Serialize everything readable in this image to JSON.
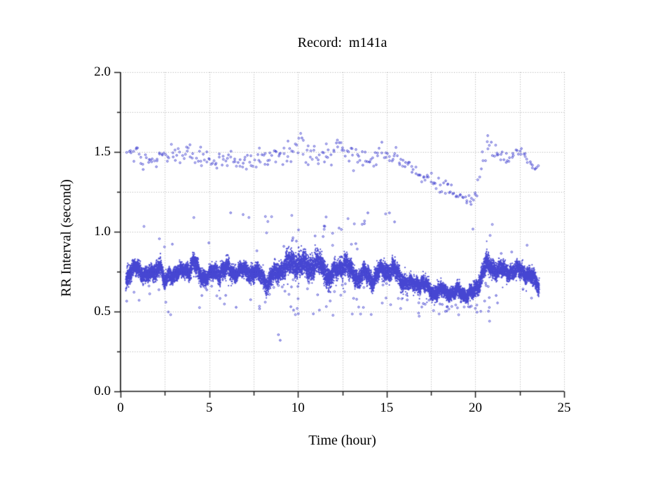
{
  "chart_data": {
    "type": "scatter",
    "title": "Record:  m141a",
    "xlabel": "Time (hour)",
    "ylabel": "RR Interval (second)",
    "xlim": [
      0,
      25
    ],
    "ylim": [
      0.0,
      2.0
    ],
    "x_ticks": [
      {
        "v": 0,
        "label": "0"
      },
      {
        "v": 5,
        "label": "5"
      },
      {
        "v": 10,
        "label": "10"
      },
      {
        "v": 15,
        "label": "15"
      },
      {
        "v": 20,
        "label": "20"
      },
      {
        "v": 25,
        "label": "25"
      }
    ],
    "x_minor_step": 2.5,
    "y_ticks": [
      {
        "v": 0.0,
        "label": "0.0"
      },
      {
        "v": 0.5,
        "label": "0.5"
      },
      {
        "v": 1.0,
        "label": "1.0"
      },
      {
        "v": 1.5,
        "label": "1.5"
      },
      {
        "v": 2.0,
        "label": "2.0"
      }
    ],
    "y_minor_step": 0.25,
    "grid": {
      "style": "dotted",
      "at_minor_ticks": true
    },
    "legend": "none",
    "point_style": "small-open-circle",
    "point_color": "#3232cd",
    "axis_color": "#1a1a1a",
    "grid_color": "#ababab",
    "background_color": "#ffffff",
    "time_range": [
      0.3,
      23.6
    ],
    "seed": 1337,
    "band": {
      "description": "dense main RR-interval band (seconds vs hour): [t, center, half_width]",
      "points_per_hour": 700,
      "profile": [
        [
          0.3,
          0.71,
          0.07
        ],
        [
          0.55,
          0.76,
          0.06
        ],
        [
          0.9,
          0.77,
          0.05
        ],
        [
          1.3,
          0.74,
          0.05
        ],
        [
          1.7,
          0.73,
          0.05
        ],
        [
          2.05,
          0.76,
          0.06
        ],
        [
          2.25,
          0.82,
          0.06
        ],
        [
          2.45,
          0.67,
          0.06
        ],
        [
          2.7,
          0.72,
          0.05
        ],
        [
          3.1,
          0.74,
          0.05
        ],
        [
          3.5,
          0.75,
          0.05
        ],
        [
          3.9,
          0.77,
          0.06
        ],
        [
          4.15,
          0.81,
          0.07
        ],
        [
          4.45,
          0.73,
          0.06
        ],
        [
          4.8,
          0.72,
          0.05
        ],
        [
          5.2,
          0.74,
          0.05
        ],
        [
          5.6,
          0.75,
          0.06
        ],
        [
          6.0,
          0.77,
          0.06
        ],
        [
          6.4,
          0.74,
          0.05
        ],
        [
          6.8,
          0.76,
          0.05
        ],
        [
          7.2,
          0.75,
          0.05
        ],
        [
          7.6,
          0.74,
          0.06
        ],
        [
          8.0,
          0.72,
          0.06
        ],
        [
          8.3,
          0.67,
          0.06
        ],
        [
          8.6,
          0.73,
          0.06
        ],
        [
          9.0,
          0.76,
          0.07
        ],
        [
          9.4,
          0.79,
          0.08
        ],
        [
          9.8,
          0.81,
          0.08
        ],
        [
          10.2,
          0.79,
          0.08
        ],
        [
          10.6,
          0.78,
          0.08
        ],
        [
          11.0,
          0.8,
          0.08
        ],
        [
          11.4,
          0.78,
          0.07
        ],
        [
          11.8,
          0.71,
          0.07
        ],
        [
          12.2,
          0.77,
          0.07
        ],
        [
          12.6,
          0.8,
          0.07
        ],
        [
          13.0,
          0.75,
          0.06
        ],
        [
          13.4,
          0.71,
          0.06
        ],
        [
          13.8,
          0.74,
          0.06
        ],
        [
          14.2,
          0.7,
          0.06
        ],
        [
          14.6,
          0.75,
          0.06
        ],
        [
          15.0,
          0.76,
          0.06
        ],
        [
          15.4,
          0.76,
          0.06
        ],
        [
          15.8,
          0.71,
          0.06
        ],
        [
          16.2,
          0.67,
          0.05
        ],
        [
          16.7,
          0.68,
          0.05
        ],
        [
          17.2,
          0.66,
          0.05
        ],
        [
          17.7,
          0.62,
          0.05
        ],
        [
          18.2,
          0.63,
          0.05
        ],
        [
          18.7,
          0.61,
          0.04
        ],
        [
          19.1,
          0.63,
          0.05
        ],
        [
          19.5,
          0.6,
          0.04
        ],
        [
          19.9,
          0.62,
          0.05
        ],
        [
          20.2,
          0.68,
          0.06
        ],
        [
          20.5,
          0.78,
          0.07
        ],
        [
          20.9,
          0.78,
          0.06
        ],
        [
          21.3,
          0.76,
          0.06
        ],
        [
          21.7,
          0.75,
          0.05
        ],
        [
          22.1,
          0.75,
          0.05
        ],
        [
          22.5,
          0.76,
          0.06
        ],
        [
          22.9,
          0.74,
          0.05
        ],
        [
          23.2,
          0.71,
          0.05
        ],
        [
          23.45,
          0.68,
          0.05
        ],
        [
          23.6,
          0.66,
          0.05
        ]
      ]
    },
    "upper_cluster": {
      "description": "sparse cluster near 2x RR (missed beats): [t, center, sd]",
      "points_per_hour": 14,
      "profile": [
        [
          0.4,
          1.5,
          0.05
        ],
        [
          1.0,
          1.48,
          0.06
        ],
        [
          1.6,
          1.44,
          0.05
        ],
        [
          2.2,
          1.46,
          0.05
        ],
        [
          2.8,
          1.48,
          0.05
        ],
        [
          3.4,
          1.47,
          0.05
        ],
        [
          4.0,
          1.49,
          0.06
        ],
        [
          4.6,
          1.46,
          0.05
        ],
        [
          5.2,
          1.44,
          0.05
        ],
        [
          5.8,
          1.46,
          0.05
        ],
        [
          6.4,
          1.44,
          0.05
        ],
        [
          7.0,
          1.43,
          0.05
        ],
        [
          7.6,
          1.45,
          0.06
        ],
        [
          8.2,
          1.46,
          0.06
        ],
        [
          8.8,
          1.49,
          0.07
        ],
        [
          9.4,
          1.52,
          0.08
        ],
        [
          10.0,
          1.54,
          0.08
        ],
        [
          10.6,
          1.5,
          0.08
        ],
        [
          11.2,
          1.47,
          0.07
        ],
        [
          11.8,
          1.49,
          0.06
        ],
        [
          12.4,
          1.53,
          0.06
        ],
        [
          13.0,
          1.49,
          0.07
        ],
        [
          13.6,
          1.44,
          0.07
        ],
        [
          14.2,
          1.47,
          0.06
        ],
        [
          14.8,
          1.51,
          0.05
        ],
        [
          15.4,
          1.46,
          0.06
        ],
        [
          16.0,
          1.44,
          0.05
        ],
        [
          16.5,
          1.4,
          0.05
        ],
        [
          17.0,
          1.35,
          0.05
        ],
        [
          17.5,
          1.32,
          0.04
        ],
        [
          18.0,
          1.3,
          0.04
        ],
        [
          18.5,
          1.27,
          0.04
        ],
        [
          19.0,
          1.22,
          0.03
        ],
        [
          19.4,
          1.2,
          0.03
        ],
        [
          19.8,
          1.18,
          0.03
        ],
        [
          20.1,
          1.25,
          0.05
        ],
        [
          20.4,
          1.45,
          0.06
        ],
        [
          20.7,
          1.55,
          0.05
        ],
        [
          21.1,
          1.5,
          0.05
        ],
        [
          21.6,
          1.45,
          0.04
        ],
        [
          22.1,
          1.47,
          0.05
        ],
        [
          22.6,
          1.5,
          0.04
        ],
        [
          23.0,
          1.45,
          0.04
        ],
        [
          23.3,
          1.42,
          0.04
        ],
        [
          23.6,
          1.38,
          0.03
        ]
      ]
    },
    "mid_outliers": {
      "description": "scattered points between band and upper cluster: [t0, t1, points_per_hour]",
      "v_max": 1.12,
      "segments": [
        [
          0.3,
          8.0,
          1.3
        ],
        [
          8.0,
          16.0,
          4.0
        ],
        [
          16.0,
          23.6,
          0.8
        ]
      ]
    },
    "low_outliers": {
      "description": "scattered points below band: [t0, t1, points_per_hour]",
      "v_floor": 0.47,
      "segments": [
        [
          0.3,
          8.0,
          3.0
        ],
        [
          8.0,
          17.0,
          6.0
        ],
        [
          17.0,
          20.0,
          7.0
        ],
        [
          20.0,
          23.6,
          4.0
        ]
      ]
    },
    "extra_points": [
      [
        8.9,
        0.355
      ],
      [
        9.0,
        0.32
      ],
      [
        20.8,
        0.44
      ]
    ]
  }
}
